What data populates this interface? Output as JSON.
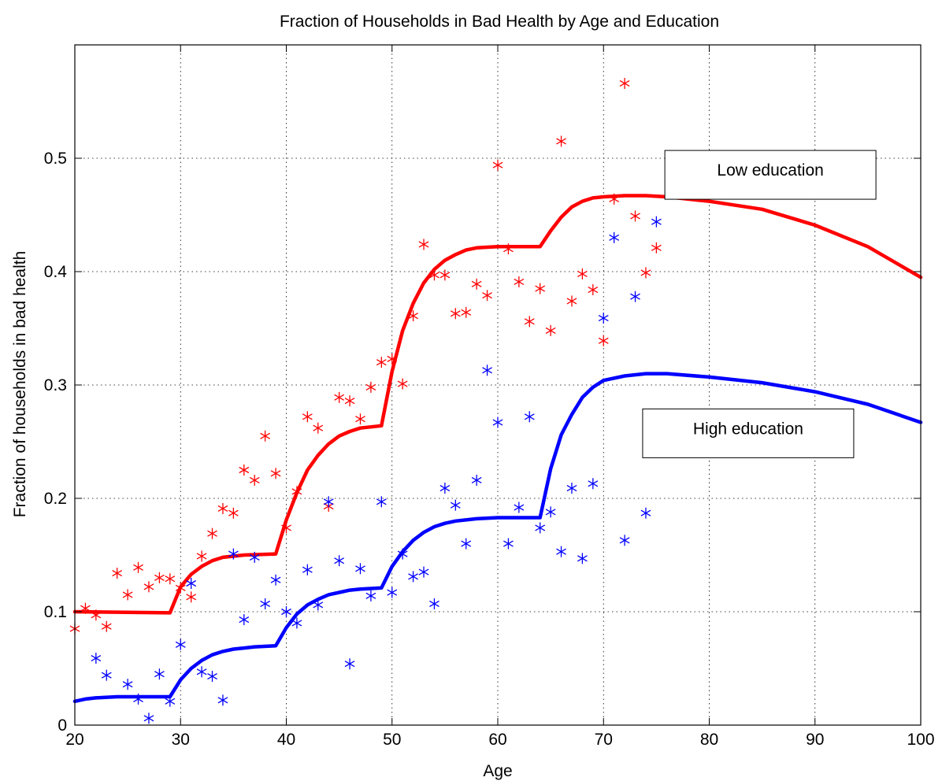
{
  "chart_data": {
    "type": "scatter",
    "title": "Fraction of Households in Bad Health by Age and Education",
    "xlabel": "Age",
    "ylabel": "Fraction of households in bad health",
    "xlim": [
      20,
      100
    ],
    "ylim": [
      0,
      0.6
    ],
    "xticks": [
      20,
      30,
      40,
      50,
      60,
      70,
      80,
      90,
      100
    ],
    "xtick_labels": [
      "20",
      "30",
      "40",
      "50",
      "60",
      "70",
      "80",
      "90",
      "100"
    ],
    "yticks": [
      0,
      0.1,
      0.2,
      0.3,
      0.4,
      0.5
    ],
    "ytick_labels": [
      "0",
      "0.1",
      "0.2",
      "0.3",
      "0.4",
      "0.5"
    ],
    "grid": true,
    "annotations": [
      {
        "text": "Low education",
        "x": 75.8,
        "y": 0.493
      },
      {
        "text": "High education",
        "x": 73.7,
        "y": 0.265
      }
    ],
    "series": [
      {
        "type": "line",
        "color": "#ff0000",
        "points": [
          [
            20,
            0.1
          ],
          [
            29,
            0.099
          ],
          [
            30,
            0.122
          ],
          [
            31,
            0.133
          ],
          [
            32,
            0.14
          ],
          [
            33,
            0.145
          ],
          [
            34,
            0.148
          ],
          [
            36,
            0.15
          ],
          [
            39,
            0.151
          ],
          [
            40,
            0.181
          ],
          [
            41,
            0.205
          ],
          [
            42,
            0.225
          ],
          [
            43,
            0.238
          ],
          [
            44,
            0.248
          ],
          [
            45,
            0.255
          ],
          [
            46,
            0.259
          ],
          [
            47,
            0.262
          ],
          [
            49,
            0.264
          ],
          [
            50,
            0.312
          ],
          [
            51,
            0.348
          ],
          [
            52,
            0.372
          ],
          [
            53,
            0.39
          ],
          [
            54,
            0.402
          ],
          [
            55,
            0.41
          ],
          [
            56,
            0.415
          ],
          [
            57,
            0.419
          ],
          [
            58,
            0.421
          ],
          [
            60,
            0.422
          ],
          [
            64,
            0.422
          ],
          [
            65,
            0.436
          ],
          [
            66,
            0.448
          ],
          [
            67,
            0.457
          ],
          [
            68,
            0.462
          ],
          [
            69,
            0.465
          ],
          [
            70,
            0.466
          ],
          [
            72,
            0.467
          ],
          [
            74,
            0.467
          ],
          [
            76,
            0.466
          ],
          [
            80,
            0.462
          ],
          [
            85,
            0.455
          ],
          [
            90,
            0.441
          ],
          [
            95,
            0.422
          ],
          [
            100,
            0.395
          ]
        ]
      },
      {
        "type": "line",
        "color": "#0000ff",
        "points": [
          [
            20,
            0.021
          ],
          [
            21,
            0.023
          ],
          [
            22,
            0.024
          ],
          [
            24,
            0.025
          ],
          [
            29,
            0.025
          ],
          [
            30,
            0.04
          ],
          [
            31,
            0.05
          ],
          [
            32,
            0.057
          ],
          [
            33,
            0.062
          ],
          [
            34,
            0.065
          ],
          [
            35,
            0.067
          ],
          [
            36,
            0.068
          ],
          [
            37,
            0.069
          ],
          [
            39,
            0.07
          ],
          [
            40,
            0.086
          ],
          [
            41,
            0.098
          ],
          [
            42,
            0.106
          ],
          [
            43,
            0.111
          ],
          [
            44,
            0.115
          ],
          [
            45,
            0.117
          ],
          [
            46,
            0.119
          ],
          [
            47,
            0.12
          ],
          [
            49,
            0.121
          ],
          [
            50,
            0.14
          ],
          [
            51,
            0.153
          ],
          [
            52,
            0.163
          ],
          [
            53,
            0.17
          ],
          [
            54,
            0.175
          ],
          [
            55,
            0.178
          ],
          [
            56,
            0.18
          ],
          [
            58,
            0.182
          ],
          [
            60,
            0.183
          ],
          [
            64,
            0.183
          ],
          [
            65,
            0.226
          ],
          [
            66,
            0.256
          ],
          [
            67,
            0.274
          ],
          [
            68,
            0.289
          ],
          [
            69,
            0.298
          ],
          [
            70,
            0.304
          ],
          [
            72,
            0.308
          ],
          [
            74,
            0.31
          ],
          [
            76,
            0.31
          ],
          [
            80,
            0.307
          ],
          [
            85,
            0.302
          ],
          [
            90,
            0.294
          ],
          [
            95,
            0.283
          ],
          [
            100,
            0.267
          ]
        ]
      },
      {
        "type": "scatter",
        "marker": "asterisk",
        "color": "#ff0000",
        "points": [
          [
            20,
            0.085
          ],
          [
            21,
            0.103
          ],
          [
            22,
            0.097
          ],
          [
            23,
            0.087
          ],
          [
            24,
            0.134
          ],
          [
            25,
            0.115
          ],
          [
            26,
            0.139
          ],
          [
            27,
            0.122
          ],
          [
            28,
            0.13
          ],
          [
            29,
            0.129
          ],
          [
            30,
            0.121
          ],
          [
            31,
            0.113
          ],
          [
            32,
            0.149
          ],
          [
            33,
            0.169
          ],
          [
            34,
            0.191
          ],
          [
            35,
            0.187
          ],
          [
            36,
            0.225
          ],
          [
            37,
            0.216
          ],
          [
            38,
            0.255
          ],
          [
            39,
            0.222
          ],
          [
            40,
            0.174
          ],
          [
            41,
            0.206
          ],
          [
            42,
            0.272
          ],
          [
            43,
            0.262
          ],
          [
            44,
            0.193
          ],
          [
            45,
            0.289
          ],
          [
            46,
            0.286
          ],
          [
            47,
            0.27
          ],
          [
            48,
            0.298
          ],
          [
            49,
            0.32
          ],
          [
            50,
            0.323
          ],
          [
            51,
            0.301
          ],
          [
            52,
            0.361
          ],
          [
            53,
            0.424
          ],
          [
            54,
            0.397
          ],
          [
            55,
            0.397
          ],
          [
            56,
            0.363
          ],
          [
            57,
            0.364
          ],
          [
            58,
            0.389
          ],
          [
            59,
            0.379
          ],
          [
            60,
            0.494
          ],
          [
            61,
            0.42
          ],
          [
            62,
            0.391
          ],
          [
            63,
            0.356
          ],
          [
            64,
            0.385
          ],
          [
            65,
            0.348
          ],
          [
            66,
            0.515
          ],
          [
            67,
            0.374
          ],
          [
            68,
            0.398
          ],
          [
            69,
            0.384
          ],
          [
            70,
            0.339
          ],
          [
            71,
            0.464
          ],
          [
            72,
            0.566
          ],
          [
            73,
            0.449
          ],
          [
            74,
            0.399
          ],
          [
            75,
            0.421
          ]
        ]
      },
      {
        "type": "scatter",
        "marker": "asterisk",
        "color": "#0000ff",
        "points": [
          [
            22,
            0.059
          ],
          [
            23,
            0.044
          ],
          [
            25,
            0.036
          ],
          [
            26,
            0.023
          ],
          [
            27,
            0.006
          ],
          [
            28,
            0.045
          ],
          [
            29,
            0.021
          ],
          [
            30,
            0.071
          ],
          [
            31,
            0.125
          ],
          [
            32,
            0.047
          ],
          [
            33,
            0.043
          ],
          [
            34,
            0.022
          ],
          [
            35,
            0.151
          ],
          [
            36,
            0.093
          ],
          [
            37,
            0.148
          ],
          [
            38,
            0.107
          ],
          [
            39,
            0.128
          ],
          [
            40,
            0.1
          ],
          [
            41,
            0.09
          ],
          [
            42,
            0.137
          ],
          [
            43,
            0.106
          ],
          [
            44,
            0.197
          ],
          [
            45,
            0.145
          ],
          [
            46,
            0.054
          ],
          [
            47,
            0.138
          ],
          [
            48,
            0.114
          ],
          [
            49,
            0.197
          ],
          [
            50,
            0.117
          ],
          [
            51,
            0.151
          ],
          [
            52,
            0.131
          ],
          [
            53,
            0.135
          ],
          [
            54,
            0.107
          ],
          [
            55,
            0.209
          ],
          [
            56,
            0.194
          ],
          [
            57,
            0.16
          ],
          [
            58,
            0.216
          ],
          [
            59,
            0.313
          ],
          [
            60,
            0.267
          ],
          [
            61,
            0.16
          ],
          [
            62,
            0.192
          ],
          [
            63,
            0.272
          ],
          [
            64,
            0.174
          ],
          [
            65,
            0.188
          ],
          [
            66,
            0.153
          ],
          [
            67,
            0.209
          ],
          [
            68,
            0.147
          ],
          [
            69,
            0.213
          ],
          [
            70,
            0.359
          ],
          [
            71,
            0.43
          ],
          [
            72,
            0.163
          ],
          [
            73,
            0.378
          ],
          [
            74,
            0.187
          ],
          [
            75,
            0.444
          ]
        ]
      }
    ]
  }
}
